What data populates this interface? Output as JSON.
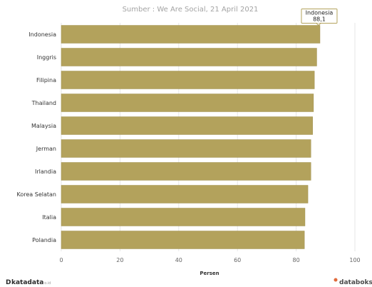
{
  "source": "Sumber : We Are Social, 21 April 2021",
  "chart_data": {
    "type": "bar",
    "orientation": "horizontal",
    "categories": [
      "Indonesia",
      "Inggris",
      "Filipina",
      "Thailand",
      "Malaysia",
      "Jerman",
      "Irlandia",
      "Korea Selatan",
      "Italia",
      "Polandia"
    ],
    "values": [
      88.1,
      87,
      86.2,
      85.9,
      85.6,
      85,
      85,
      84,
      83,
      82.8
    ],
    "xlabel": "Persen",
    "ylabel": "",
    "xlim": [
      0,
      100
    ],
    "xticks": [
      "0",
      "20",
      "40",
      "60",
      "80",
      "100"
    ],
    "grid": true,
    "colors": {
      "bar": "#b3a25c",
      "bar_stroke": "#9f8f4d",
      "tooltip_border": "#b3a25c"
    },
    "tooltip": {
      "category": "Indonesia",
      "value_label": "88,1"
    }
  },
  "footer": {
    "left_logo_mark": "D",
    "left_logo_text": "katadata",
    "left_logo_sub": ".co.id",
    "right_logo_icon": "databoks-icon",
    "right_logo_text": "databoks"
  }
}
